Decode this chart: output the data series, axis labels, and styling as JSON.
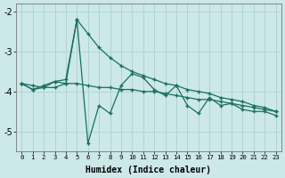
{
  "xlabel": "Humidex (Indice chaleur)",
  "ylabel": "",
  "bg_color": "#cce8e8",
  "line_color": "#1a6e60",
  "grid_color": "#aed4d4",
  "xlim": [
    -0.5,
    23.5
  ],
  "ylim": [
    -5.5,
    -1.8
  ],
  "yticks": [
    -5,
    -4,
    -3,
    -2
  ],
  "xticks": [
    0,
    1,
    2,
    3,
    4,
    5,
    6,
    7,
    8,
    9,
    10,
    11,
    12,
    13,
    14,
    15,
    16,
    17,
    18,
    19,
    20,
    21,
    22,
    23
  ],
  "line_diagonal": [
    -3.8,
    -3.85,
    -3.9,
    -3.9,
    -3.8,
    -2.2,
    -2.55,
    -2.9,
    -3.15,
    -3.35,
    -3.5,
    -3.6,
    -3.7,
    -3.8,
    -3.85,
    -3.95,
    -4.0,
    -4.05,
    -4.15,
    -4.2,
    -4.25,
    -4.35,
    -4.4,
    -4.5
  ],
  "line_flat": [
    -3.8,
    -3.95,
    -3.9,
    -3.75,
    -3.8,
    -3.8,
    -3.85,
    -3.9,
    -3.9,
    -3.95,
    -3.95,
    -4.0,
    -4.0,
    -4.05,
    -4.1,
    -4.15,
    -4.2,
    -4.2,
    -4.25,
    -4.3,
    -4.35,
    -4.4,
    -4.45,
    -4.5
  ],
  "line_zigzag": [
    -3.8,
    -3.95,
    -3.85,
    -3.75,
    -3.7,
    -2.2,
    -5.3,
    -4.35,
    -4.55,
    -3.85,
    -3.55,
    -3.65,
    -3.95,
    -4.1,
    -3.85,
    -4.35,
    -4.55,
    -4.15,
    -4.35,
    -4.3,
    -4.45,
    -4.5,
    -4.5,
    -4.6
  ]
}
